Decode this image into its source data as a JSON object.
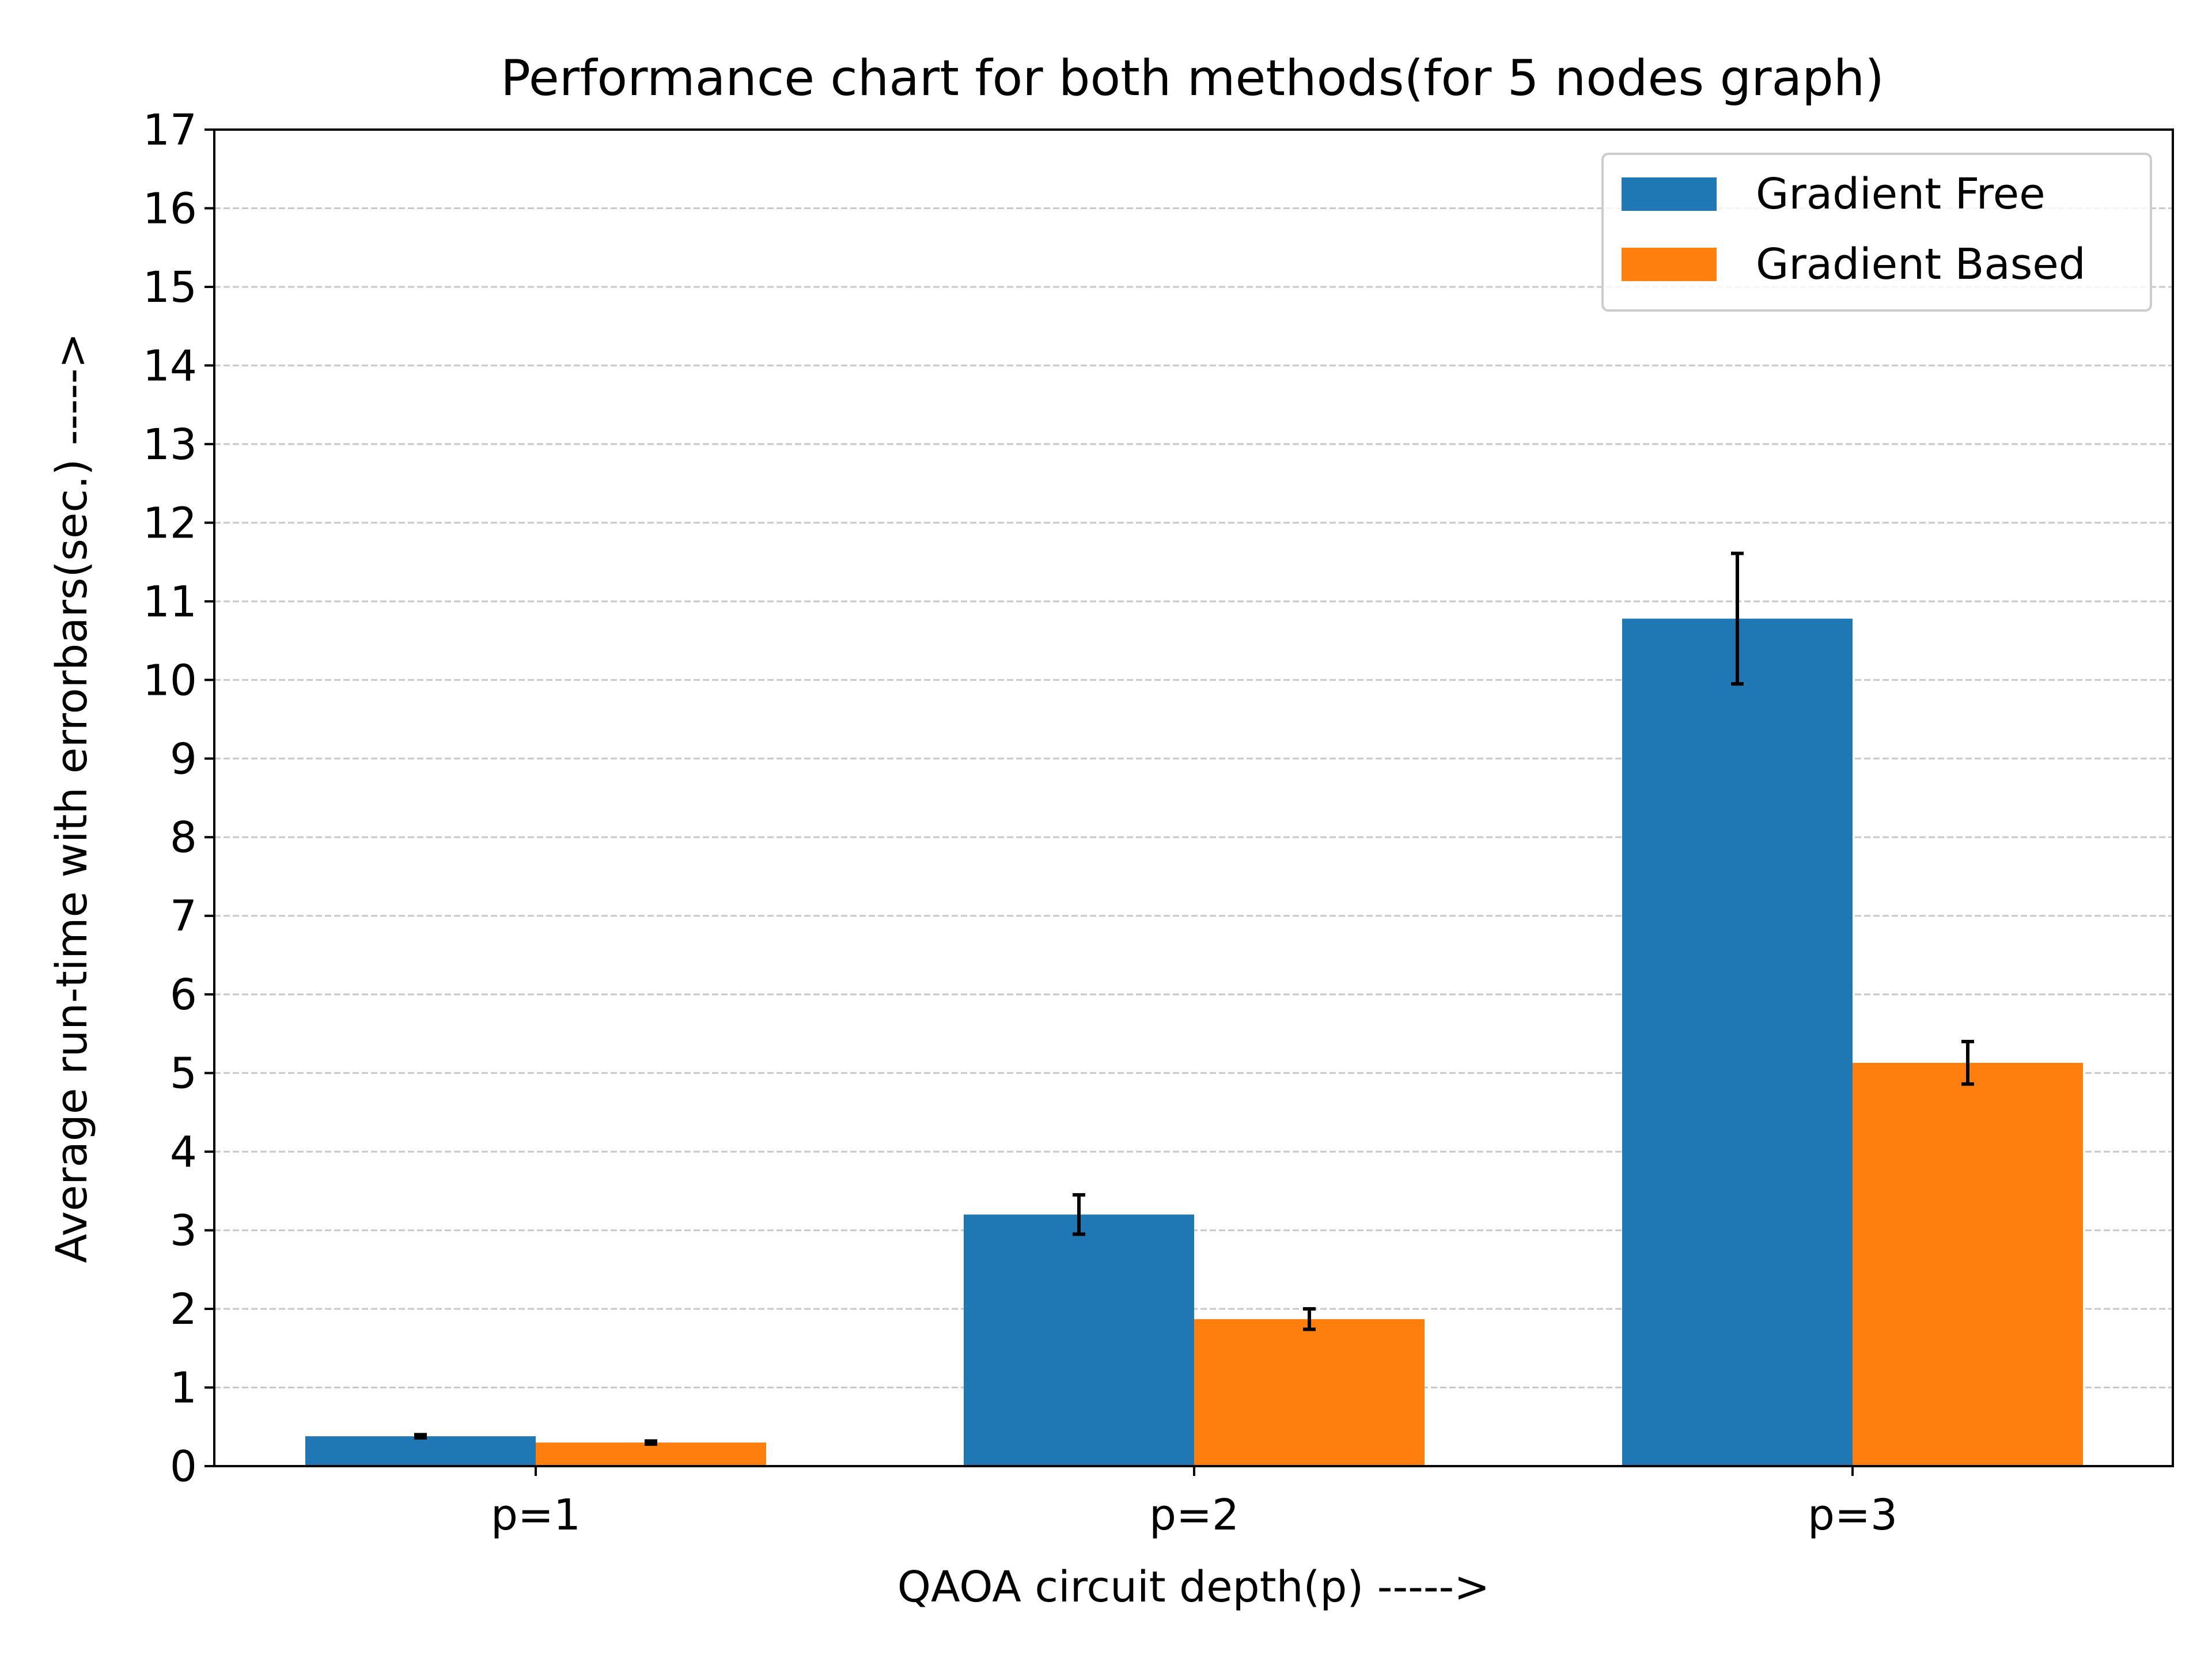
{
  "chart_data": {
    "type": "bar",
    "title": "Performance chart for both methods(for 5 nodes graph)",
    "xlabel": "QAOA circuit depth(p) ----->",
    "ylabel": "Average run-time with errorbars(sec.) ----->",
    "categories": [
      "p=1",
      "p=2",
      "p=3"
    ],
    "ylim": [
      0,
      17
    ],
    "yticks": [
      "0",
      "1",
      "2",
      "3",
      "4",
      "5",
      "6",
      "7",
      "8",
      "9",
      "10",
      "11",
      "12",
      "13",
      "14",
      "15",
      "16",
      "17"
    ],
    "grid": "horizontal dashed",
    "legend_position": "top-right",
    "series": [
      {
        "name": "Gradient Free",
        "color": "#1f77b4",
        "values": [
          0.38,
          3.2,
          10.78
        ],
        "errors": [
          0.02,
          0.25,
          0.83
        ]
      },
      {
        "name": "Gradient Based",
        "color": "#ff7f0e",
        "values": [
          0.3,
          1.87,
          5.13
        ],
        "errors": [
          0.02,
          0.13,
          0.27
        ]
      }
    ]
  }
}
